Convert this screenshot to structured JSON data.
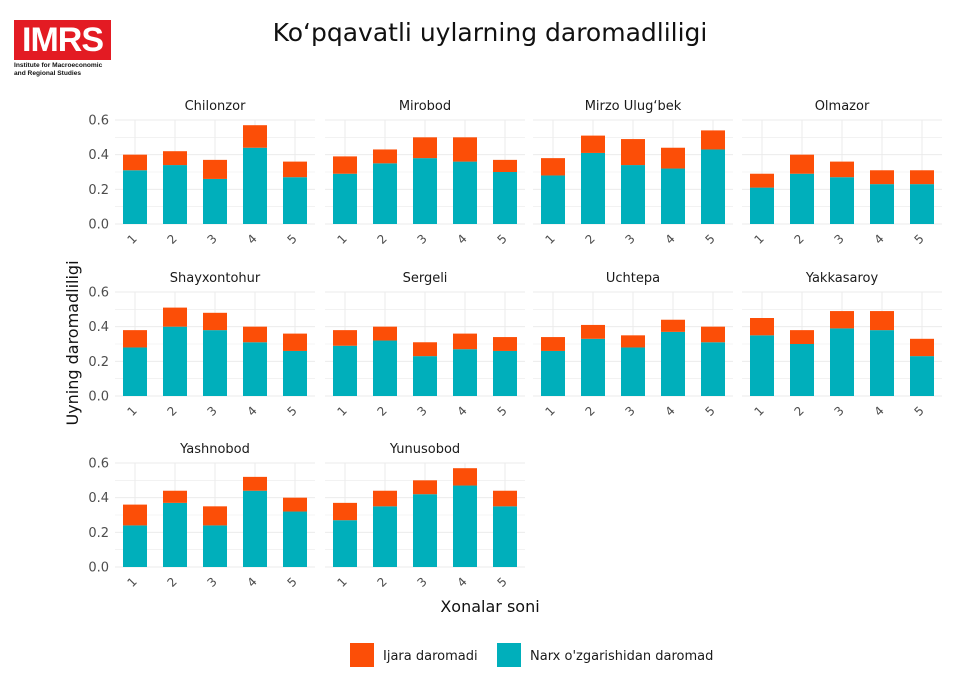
{
  "logo": {
    "text": "IMRS",
    "subtitle_line1": "Institute for Macroeconomic",
    "subtitle_line2": "and Regional Studies"
  },
  "colors": {
    "ijara": "#fc4e07",
    "narx": "#00afbb",
    "grid": "#ebebeb"
  },
  "chart_data": {
    "type": "bar",
    "stacked": true,
    "title": "Ko‘pqavatli uylarning daromadliligi",
    "xlabel": "Xonalar soni",
    "ylabel": "Uyning daromadliligi",
    "ylim": [
      0,
      0.6
    ],
    "yticks": [
      "0.0",
      "0.2",
      "0.4",
      "0.6"
    ],
    "categories": [
      "1",
      "2",
      "3",
      "4",
      "5"
    ],
    "legend": {
      "position": "bottom",
      "items": [
        "Ijara daromadi",
        "Narx o'zgarishidan daromad"
      ]
    },
    "panels": [
      {
        "name": "Chilonzor",
        "narx": [
          0.31,
          0.34,
          0.26,
          0.44,
          0.27
        ],
        "ijara": [
          0.09,
          0.08,
          0.11,
          0.13,
          0.09
        ]
      },
      {
        "name": "Mirobod",
        "narx": [
          0.29,
          0.35,
          0.38,
          0.36,
          0.3
        ],
        "ijara": [
          0.1,
          0.08,
          0.12,
          0.14,
          0.07
        ]
      },
      {
        "name": "Mirzo Ulug‘bek",
        "narx": [
          0.28,
          0.41,
          0.34,
          0.32,
          0.43
        ],
        "ijara": [
          0.1,
          0.1,
          0.15,
          0.12,
          0.11
        ]
      },
      {
        "name": "Olmazor",
        "narx": [
          0.21,
          0.29,
          0.27,
          0.23,
          0.23
        ],
        "ijara": [
          0.08,
          0.11,
          0.09,
          0.08,
          0.08
        ]
      },
      {
        "name": "Shayxontohur",
        "narx": [
          0.28,
          0.4,
          0.38,
          0.31,
          0.26
        ],
        "ijara": [
          0.1,
          0.11,
          0.1,
          0.09,
          0.1
        ]
      },
      {
        "name": "Sergeli",
        "narx": [
          0.29,
          0.32,
          0.23,
          0.27,
          0.26
        ],
        "ijara": [
          0.09,
          0.08,
          0.08,
          0.09,
          0.08
        ]
      },
      {
        "name": "Uchtepa",
        "narx": [
          0.26,
          0.33,
          0.28,
          0.37,
          0.31
        ],
        "ijara": [
          0.08,
          0.08,
          0.07,
          0.07,
          0.09
        ]
      },
      {
        "name": "Yakkasaroy",
        "narx": [
          0.35,
          0.3,
          0.39,
          0.38,
          0.23
        ],
        "ijara": [
          0.1,
          0.08,
          0.1,
          0.11,
          0.1
        ]
      },
      {
        "name": "Yashnobod",
        "narx": [
          0.24,
          0.37,
          0.24,
          0.44,
          0.32
        ],
        "ijara": [
          0.12,
          0.07,
          0.11,
          0.08,
          0.08
        ]
      },
      {
        "name": "Yunusobod",
        "narx": [
          0.27,
          0.35,
          0.42,
          0.47,
          0.35
        ],
        "ijara": [
          0.1,
          0.09,
          0.08,
          0.1,
          0.09
        ]
      }
    ]
  }
}
